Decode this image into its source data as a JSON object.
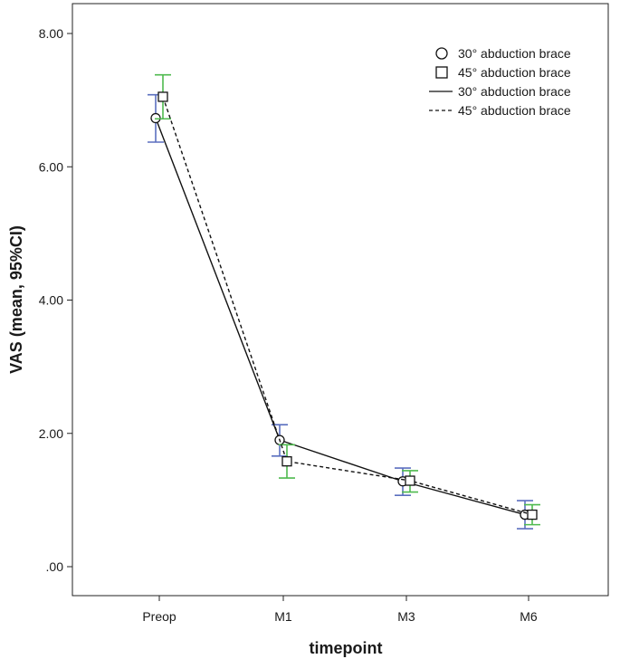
{
  "chart_data": {
    "type": "line",
    "title": "",
    "xlabel": "timepoint",
    "ylabel": "VAS (mean, 95%CI)",
    "categories": [
      "Preop",
      "M1",
      "M3",
      "M6"
    ],
    "y_ticks": [
      ".00",
      "2.00",
      "4.00",
      "6.00",
      "8.00"
    ],
    "ylim": [
      0,
      8
    ],
    "grid": false,
    "legend_position": "top-right",
    "legend": [
      {
        "label": "30° abduction brace",
        "kind": "marker",
        "marker": "circle"
      },
      {
        "label": "45° abduction brace",
        "kind": "marker",
        "marker": "square"
      },
      {
        "label": "30° abduction brace",
        "kind": "line",
        "style": "solid"
      },
      {
        "label": "45° abduction brace",
        "kind": "line",
        "style": "dashed"
      }
    ],
    "series": [
      {
        "name": "30° abduction brace",
        "marker": "circle",
        "line_style": "solid",
        "ci_color": "#5b6fbf",
        "values": [
          6.73,
          1.9,
          1.28,
          0.78
        ],
        "ci_low": [
          6.37,
          1.66,
          1.07,
          0.57
        ],
        "ci_high": [
          7.08,
          2.13,
          1.48,
          0.99
        ]
      },
      {
        "name": "45° abduction brace",
        "marker": "square",
        "line_style": "dashed",
        "ci_color": "#4fba4f",
        "values": [
          7.05,
          1.58,
          1.29,
          0.78
        ],
        "ci_low": [
          6.72,
          1.33,
          1.12,
          0.63
        ],
        "ci_high": [
          7.38,
          1.83,
          1.44,
          0.93
        ]
      }
    ]
  }
}
